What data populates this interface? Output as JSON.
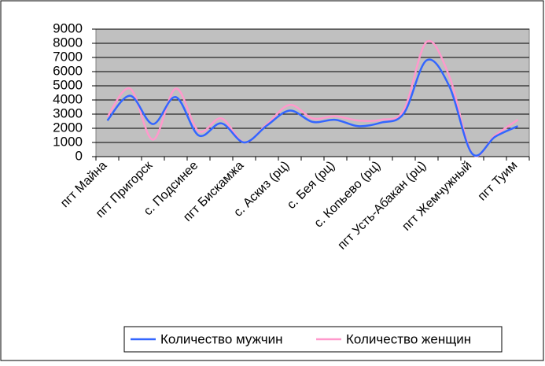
{
  "chart_data": {
    "type": "line",
    "categories": [
      "пгт Майна",
      null,
      "пгт Пригорск",
      null,
      "с. Подсинее",
      null,
      "пгт Бискамжа",
      null,
      "с. Аскиз (рц)",
      null,
      "с. Бея (рц)",
      null,
      "с. Копьево (рц)",
      null,
      "пгт Усть-Абакан (рц)",
      null,
      "пгт Жемчужный",
      null,
      "пгт Туим"
    ],
    "series": [
      {
        "name": "Количество мужчин",
        "color": "#3366ff",
        "values": [
          2550,
          4300,
          2300,
          4200,
          1500,
          2350,
          1000,
          2200,
          3250,
          2450,
          2600,
          2150,
          2400,
          3050,
          6800,
          4950,
          200,
          1400,
          2150
        ]
      },
      {
        "name": "Количество женщин",
        "color": "#ff99cc",
        "values": [
          2800,
          4800,
          1200,
          4800,
          1800,
          2700,
          1000,
          2300,
          3650,
          2700,
          2850,
          2550,
          2600,
          3300,
          8100,
          5650,
          200,
          1500,
          2600
        ]
      }
    ],
    "ylim": [
      0,
      9000
    ],
    "yticks": [
      0,
      1000,
      2000,
      3000,
      4000,
      5000,
      6000,
      7000,
      8000,
      9000
    ],
    "grid": true,
    "smooth": true,
    "legend": "bottom"
  }
}
